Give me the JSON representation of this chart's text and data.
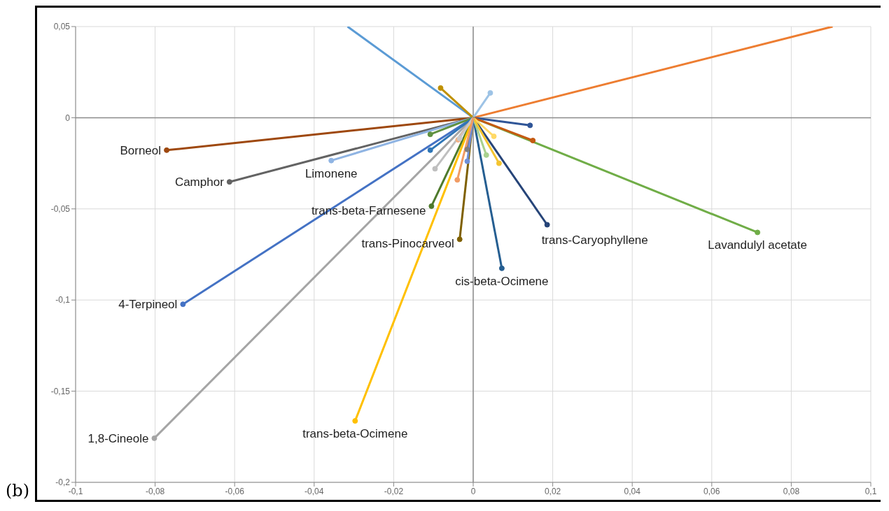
{
  "chart_data": {
    "type": "line",
    "marker": "circle",
    "grid": true,
    "xlim": [
      -0.1,
      0.1
    ],
    "ylim": [
      -0.2,
      0.05
    ],
    "xticks": [
      {
        "value": -0.1,
        "label": "-0,1"
      },
      {
        "value": -0.08,
        "label": "-0,08"
      },
      {
        "value": -0.06,
        "label": "-0,06"
      },
      {
        "value": -0.04,
        "label": "-0,04"
      },
      {
        "value": -0.02,
        "label": "-0,02"
      },
      0,
      {
        "value": 0.02,
        "label": "0,02"
      },
      {
        "value": 0.04,
        "label": "0,04"
      },
      {
        "value": 0.06,
        "label": "0,06"
      },
      {
        "value": 0.08,
        "label": "0,08"
      },
      {
        "value": 0.1,
        "label": "0,1"
      }
    ],
    "yticks": [
      {
        "value": -0.2,
        "label": "-0,2"
      },
      {
        "value": -0.15,
        "label": "-0,15"
      },
      {
        "value": -0.1,
        "label": "-0,1"
      },
      {
        "value": -0.05,
        "label": "-0,05"
      },
      0,
      {
        "value": 0.05,
        "label": "0,05"
      }
    ],
    "annotations": [
      "(b)"
    ],
    "series": [
      {
        "name": "Borneol",
        "color": "#9e480e",
        "x": [
          0,
          -0.0771
        ],
        "values": [
          0,
          -0.0178
        ]
      },
      {
        "name": "Camphor",
        "color": "#636363",
        "x": [
          0,
          -0.0613
        ],
        "values": [
          0,
          -0.0352
        ]
      },
      {
        "name": "Limonene",
        "color": "#8fb4e3",
        "x": [
          0,
          -0.0357
        ],
        "values": [
          0,
          -0.0235
        ]
      },
      {
        "name": "4-Terpineol",
        "color": "#4472c4",
        "x": [
          0,
          -0.073
        ],
        "values": [
          0,
          -0.1023
        ]
      },
      {
        "name": "1,8-Cineole",
        "color": "#a5a5a5",
        "x": [
          0,
          -0.0802
        ],
        "values": [
          0,
          -0.1758
        ]
      },
      {
        "name": "trans-beta-Farnesene",
        "color": "#4e7a2c",
        "x": [
          0,
          -0.0105
        ],
        "values": [
          0,
          -0.0485
        ]
      },
      {
        "name": "trans-Pinocarveol",
        "color": "#7f6000",
        "x": [
          0,
          -0.0034
        ],
        "values": [
          0,
          -0.0667
        ]
      },
      {
        "name": "trans-beta-Ocimene",
        "color": "#ffc000",
        "x": [
          0,
          -0.0297
        ],
        "values": [
          0,
          -0.1663
        ]
      },
      {
        "name": "cis-beta-Ocimene",
        "color": "#255e91",
        "x": [
          0,
          0.0072
        ],
        "values": [
          0,
          -0.0826
        ]
      },
      {
        "name": "trans-Caryophyllene",
        "color": "#264478",
        "x": [
          0,
          0.0186
        ],
        "values": [
          0,
          -0.0587
        ]
      },
      {
        "name": "Lavandulyl acetate",
        "color": "#70ad47",
        "x": [
          0,
          0.0715
        ],
        "values": [
          0,
          -0.0629
        ]
      },
      {
        "color": "#ed7d31",
        "x": [
          0,
          0.0904
        ],
        "values": [
          0,
          0.05
        ],
        "marker": "none"
      },
      {
        "color": "#5b9bd5",
        "x": [
          0,
          -0.0316
        ],
        "values": [
          0,
          0.05
        ],
        "marker": "none"
      },
      {
        "color": "#bf9000",
        "x": [
          0,
          -0.0082
        ],
        "values": [
          0,
          0.0163
        ]
      },
      {
        "color": "#9dc3e6",
        "x": [
          0,
          0.0043
        ],
        "values": [
          0,
          0.0136
        ]
      },
      {
        "color": "#2f5597",
        "x": [
          0,
          0.0143
        ],
        "values": [
          0,
          -0.0042
        ]
      },
      {
        "color": "#c55a11",
        "x": [
          0,
          0.015
        ],
        "values": [
          0,
          -0.0125
        ]
      },
      {
        "color": "#ffd966",
        "x": [
          0,
          0.0052
        ],
        "values": [
          0,
          -0.0102
        ]
      },
      {
        "color": "#a9d18e",
        "x": [
          0,
          0.0033
        ],
        "values": [
          0,
          -0.0205
        ]
      },
      {
        "color": "#f4c430",
        "x": [
          0,
          0.0065
        ],
        "values": [
          0,
          -0.025
        ]
      },
      {
        "color": "#5f9141",
        "x": [
          0,
          -0.0108
        ],
        "values": [
          0,
          -0.0091
        ]
      },
      {
        "color": "#2e75b6",
        "x": [
          0,
          -0.0108
        ],
        "values": [
          0,
          -0.0178
        ]
      },
      {
        "color": "#bfbfbf",
        "x": [
          0,
          -0.0096
        ],
        "values": [
          0,
          -0.028
        ]
      },
      {
        "color": "#f4b183",
        "x": [
          0,
          -0.0038
        ],
        "values": [
          0,
          -0.0121
        ]
      },
      {
        "color": "#c9c9c9",
        "x": [
          0,
          -0.0034
        ],
        "values": [
          0,
          -0.0114
        ]
      },
      {
        "color": "#7f7f7f",
        "x": [
          0,
          -0.0015
        ],
        "values": [
          0,
          -0.0174
        ]
      },
      {
        "color": "#6f8fd8",
        "x": [
          0,
          -0.0015
        ],
        "values": [
          0,
          -0.0239
        ]
      },
      {
        "color": "#f19c65",
        "x": [
          0,
          -0.004
        ],
        "values": [
          0,
          -0.0341
        ]
      }
    ]
  }
}
